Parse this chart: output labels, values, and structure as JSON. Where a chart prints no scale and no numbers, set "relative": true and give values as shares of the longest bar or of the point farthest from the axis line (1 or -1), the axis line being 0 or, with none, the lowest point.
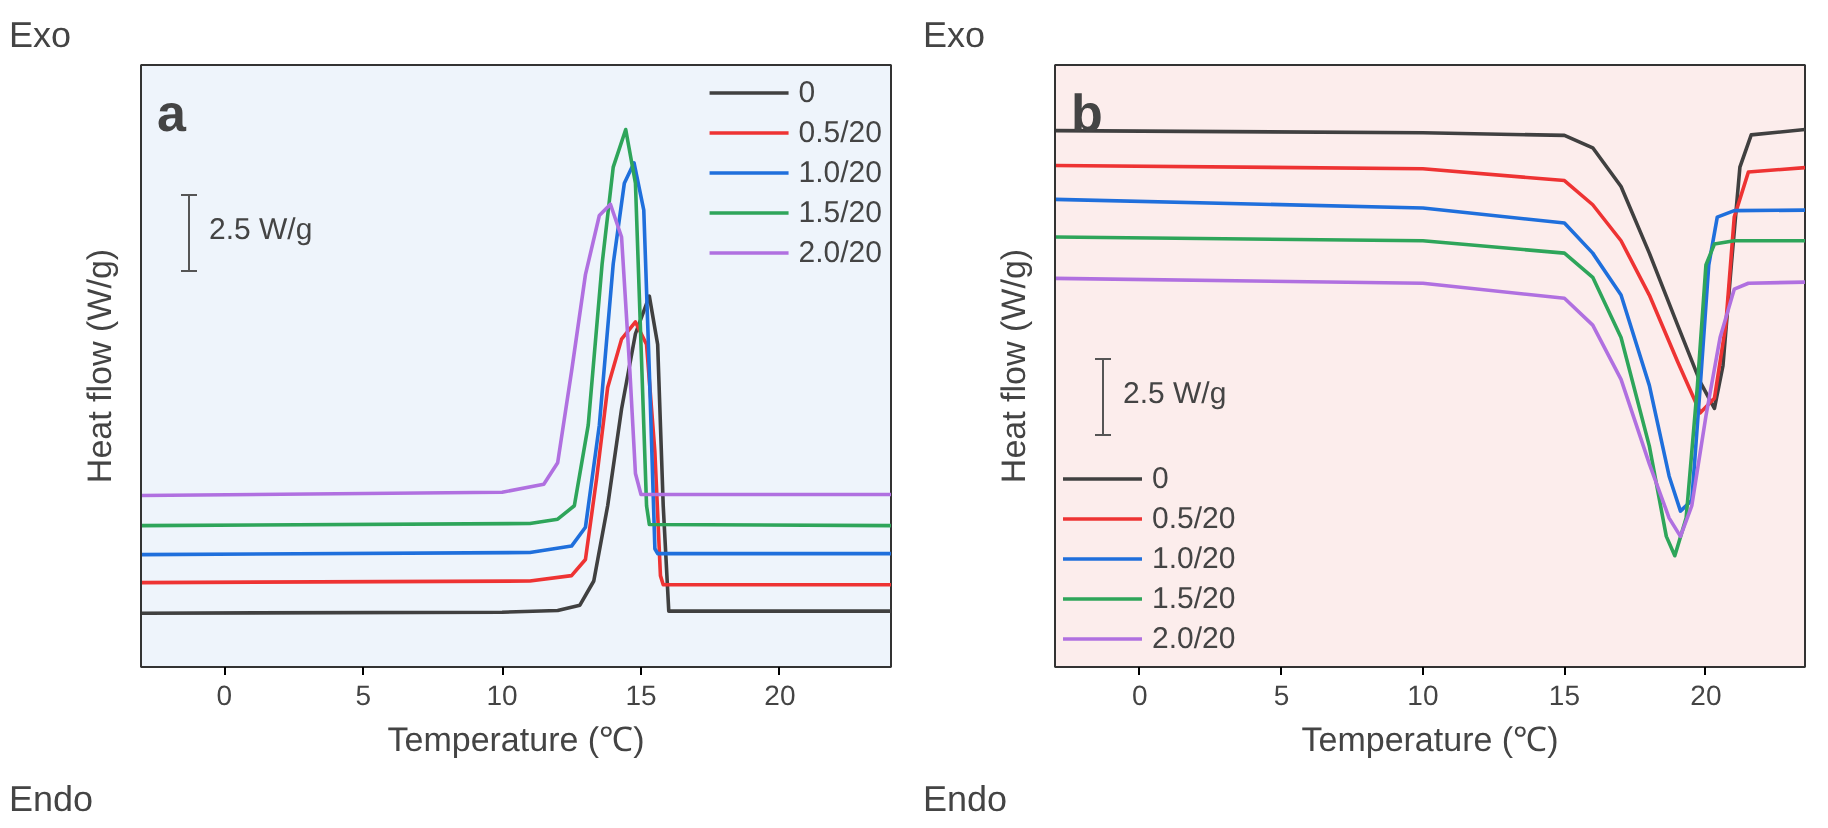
{
  "chart_data": [
    {
      "type": "line",
      "title": "a",
      "xlabel": "Temperature (℃)",
      "ylabel": "Heat flow (W/g)",
      "relative": true,
      "tick_labels": "x",
      "legend": "top right",
      "grid": false,
      "xlim": [
        -3,
        24
      ],
      "xticks": [
        0,
        5,
        10,
        15,
        20
      ],
      "annotations": [
        "Exo",
        "Endo",
        "2.5 W/g"
      ],
      "series": [
        {
          "name": "0",
          "color": "#404040",
          "x": [
            -3,
            10,
            12,
            12.8,
            13.3,
            13.8,
            14.3,
            14.8,
            15.3,
            15.6,
            15.8,
            16.0,
            24
          ],
          "values": [
            0.1,
            0.102,
            0.105,
            0.115,
            0.16,
            0.3,
            0.48,
            0.62,
            0.69,
            0.6,
            0.3,
            0.104,
            0.104
          ]
        },
        {
          "name": "0.5/20",
          "color": "#ee3333",
          "x": [
            -3,
            11,
            12.5,
            13.0,
            13.4,
            13.8,
            14.3,
            14.8,
            15.2,
            15.5,
            15.7,
            15.8,
            24
          ],
          "values": [
            0.157,
            0.16,
            0.17,
            0.2,
            0.35,
            0.52,
            0.61,
            0.642,
            0.6,
            0.4,
            0.17,
            0.153,
            0.153
          ]
        },
        {
          "name": "1.0/20",
          "color": "#1f6fdc",
          "x": [
            -3,
            11,
            12.5,
            13.0,
            13.5,
            14.0,
            14.4,
            14.75,
            15.1,
            15.3,
            15.5,
            15.6,
            24
          ],
          "values": [
            0.209,
            0.213,
            0.225,
            0.26,
            0.45,
            0.75,
            0.9,
            0.938,
            0.85,
            0.55,
            0.22,
            0.211,
            0.211
          ]
        },
        {
          "name": "1.5/20",
          "color": "#2ea55a",
          "x": [
            -3,
            11,
            12,
            12.6,
            13.1,
            13.6,
            14.0,
            14.45,
            14.8,
            15.0,
            15.2,
            15.3,
            24
          ],
          "values": [
            0.263,
            0.267,
            0.275,
            0.3,
            0.45,
            0.75,
            0.93,
            1.0,
            0.9,
            0.6,
            0.3,
            0.265,
            0.263
          ]
        },
        {
          "name": "2.0/20",
          "color": "#b070e0",
          "x": [
            -3,
            10,
            11.5,
            12.0,
            12.5,
            13.0,
            13.5,
            13.9,
            14.3,
            14.6,
            14.8,
            15.0,
            24
          ],
          "values": [
            0.319,
            0.325,
            0.34,
            0.38,
            0.55,
            0.73,
            0.84,
            0.861,
            0.8,
            0.55,
            0.36,
            0.321,
            0.321
          ]
        }
      ]
    },
    {
      "type": "line",
      "title": "b",
      "xlabel": "Temperature (℃)",
      "ylabel": "Heat flow (W/g)",
      "relative": true,
      "tick_labels": "x",
      "legend": "bottom left",
      "grid": false,
      "xlim": [
        -3,
        23.5
      ],
      "xticks": [
        0,
        5,
        10,
        15,
        20
      ],
      "annotations": [
        "Exo",
        "Endo",
        "2.5 W/g"
      ],
      "series": [
        {
          "name": "0",
          "color": "#404040",
          "x": [
            -3,
            10,
            15,
            16,
            17,
            18,
            19,
            19.8,
            20.3,
            20.6,
            20.9,
            21.2,
            21.6,
            23.5
          ],
          "values": [
            0.998,
            0.994,
            0.989,
            0.966,
            0.894,
            0.77,
            0.636,
            0.53,
            0.481,
            0.56,
            0.75,
            0.93,
            0.99,
            1.0
          ]
        },
        {
          "name": "0.5/20",
          "color": "#ee3333",
          "x": [
            -3,
            10,
            15,
            16,
            17,
            18,
            19,
            19.8,
            20.3,
            20.7,
            21.0,
            21.5,
            23.5
          ],
          "values": [
            0.933,
            0.927,
            0.905,
            0.86,
            0.793,
            0.692,
            0.568,
            0.473,
            0.5,
            0.636,
            0.837,
            0.921,
            0.929
          ]
        },
        {
          "name": "1.0/20",
          "color": "#1f6fdc",
          "x": [
            -3,
            10,
            15,
            16,
            17,
            18,
            18.7,
            19.1,
            19.5,
            19.8,
            20.1,
            20.4,
            21,
            23.5
          ],
          "values": [
            0.87,
            0.854,
            0.826,
            0.77,
            0.692,
            0.524,
            0.355,
            0.29,
            0.31,
            0.524,
            0.748,
            0.837,
            0.849,
            0.85
          ]
        },
        {
          "name": "1.5/20",
          "color": "#2ea55a",
          "x": [
            -3,
            10,
            15,
            16,
            17,
            18,
            18.6,
            18.9,
            19.3,
            19.7,
            20.0,
            20.3,
            21,
            23.5
          ],
          "values": [
            0.8,
            0.793,
            0.77,
            0.725,
            0.613,
            0.411,
            0.243,
            0.207,
            0.277,
            0.524,
            0.748,
            0.787,
            0.793,
            0.793
          ]
        },
        {
          "name": "2.0/20",
          "color": "#b070e0",
          "x": [
            -3,
            10,
            15,
            16,
            17,
            18,
            18.7,
            19.1,
            19.5,
            20.0,
            20.5,
            21.0,
            21.5,
            23.5
          ],
          "values": [
            0.723,
            0.714,
            0.686,
            0.636,
            0.535,
            0.378,
            0.277,
            0.243,
            0.3,
            0.467,
            0.613,
            0.703,
            0.714,
            0.716
          ]
        }
      ]
    }
  ]
}
